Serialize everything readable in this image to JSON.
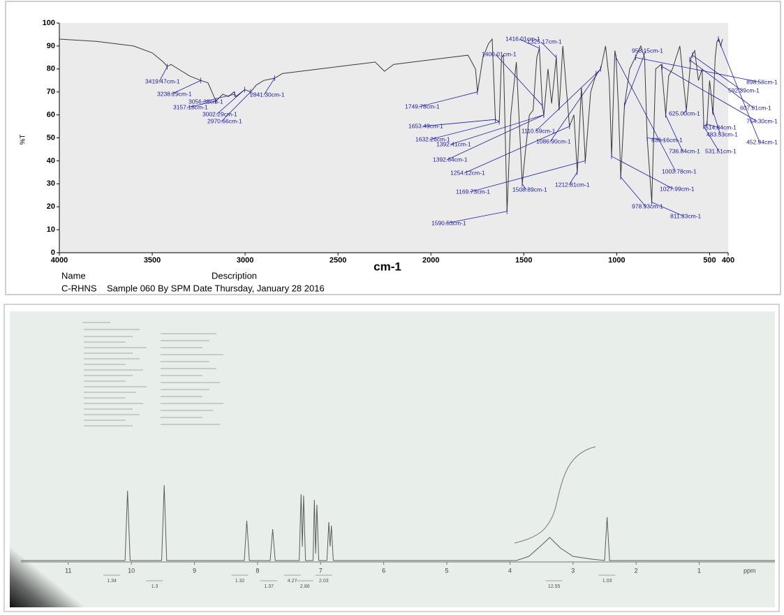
{
  "chart_data": [
    {
      "type": "line",
      "x_label": "cm-1",
      "y_label": "%T",
      "xlim": [
        4000,
        400
      ],
      "ylim": [
        0,
        100
      ],
      "xticks": [
        4000,
        3500,
        3000,
        2500,
        2000,
        1500,
        1000,
        500,
        400
      ],
      "yticks": [
        0,
        10,
        20,
        30,
        40,
        50,
        60,
        70,
        80,
        90,
        100
      ],
      "color": "#3a3a3a",
      "annotation_color": "#1c1ca8",
      "x": [
        4000,
        3800,
        3600,
        3500,
        3440,
        3419,
        3400,
        3300,
        3238,
        3200,
        3157,
        3120,
        3090,
        3060,
        3050,
        3002,
        2970,
        2940,
        2900,
        2841,
        2800,
        2600,
        2400,
        2300,
        2250,
        2200,
        2000,
        1800,
        1760,
        1749,
        1720,
        1690,
        1670,
        1653,
        1632,
        1620,
        1610,
        1590,
        1570,
        1540,
        1508,
        1490,
        1470,
        1450,
        1430,
        1416,
        1400,
        1392,
        1370,
        1350,
        1325,
        1310,
        1290,
        1254,
        1230,
        1212,
        1190,
        1169,
        1140,
        1110,
        1086,
        1060,
        1040,
        1027,
        1010,
        1003,
        990,
        978,
        958,
        930,
        900,
        870,
        850,
        836,
        811,
        790,
        760,
        736,
        720,
        700,
        680,
        660,
        625,
        600,
        580,
        560,
        540,
        531,
        514,
        500,
        493,
        482,
        470,
        460,
        450,
        440,
        430
      ],
      "values": [
        93,
        92,
        90,
        87,
        83,
        81,
        82,
        77,
        75,
        74,
        66,
        69,
        68,
        70,
        68,
        71,
        70,
        73,
        75,
        76,
        78,
        80,
        82,
        83,
        79,
        82,
        84,
        86,
        80,
        70,
        85,
        91,
        93,
        58,
        57,
        85,
        86,
        18,
        60,
        83,
        30,
        45,
        60,
        62,
        85,
        89,
        64,
        60,
        80,
        65,
        85,
        62,
        90,
        55,
        60,
        35,
        72,
        40,
        70,
        78,
        80,
        90,
        75,
        42,
        88,
        85,
        62,
        33,
        64,
        80,
        85,
        90,
        85,
        50,
        22,
        80,
        82,
        60,
        77,
        80,
        85,
        90,
        62,
        85,
        88,
        75,
        80,
        55,
        56,
        75,
        70,
        60,
        85,
        92,
        93,
        90,
        93
      ],
      "annotations": [
        {
          "x": 3419.47,
          "y": 81,
          "label": "3419.47cm-1"
        },
        {
          "x": 3238.29,
          "y": 75,
          "label": "3238.29cm-1"
        },
        {
          "x": 3056.38,
          "y": 69,
          "label": "3056.38cm-1"
        },
        {
          "x": 3157.18,
          "y": 66,
          "label": "3157.18cm-1"
        },
        {
          "x": 3002.29,
          "y": 71,
          "label": "3002.29cm-1"
        },
        {
          "x": 2970.66,
          "y": 70,
          "label": "2970.66cm-1"
        },
        {
          "x": 2841.3,
          "y": 76,
          "label": "2841.30cm-1"
        },
        {
          "x": 1749.78,
          "y": 70,
          "label": "1749.78cm-1"
        },
        {
          "x": 1653.49,
          "y": 58,
          "label": "1653.49cm-1"
        },
        {
          "x": 1632.26,
          "y": 57,
          "label": "1632.26cm-1"
        },
        {
          "x": 1392.41,
          "y": 60,
          "label": "1392.41cm-1"
        },
        {
          "x": 1392.64,
          "y": 60,
          "label": "1392.64cm-1"
        },
        {
          "x": 1254.12,
          "y": 55,
          "label": "1254.12cm-1"
        },
        {
          "x": 1169.73,
          "y": 40,
          "label": "1169.73cm-1"
        },
        {
          "x": 1590.53,
          "y": 18,
          "label": "1590.53cm-1"
        },
        {
          "x": 1508.89,
          "y": 30,
          "label": "1508.89cm-1"
        },
        {
          "x": 1212.81,
          "y": 35,
          "label": "1212.81cm-1"
        },
        {
          "x": 1110.59,
          "y": 78,
          "label": "1110.59cm-1"
        },
        {
          "x": 1086.9,
          "y": 80,
          "label": "1086.90cm-1"
        },
        {
          "x": 1400.01,
          "y": 64,
          "label": "1400.01cm-1"
        },
        {
          "x": 1416.01,
          "y": 89,
          "label": "1416.01cm-1"
        },
        {
          "x": 1325.17,
          "y": 85,
          "label": "1325.17cm-1"
        },
        {
          "x": 958.15,
          "y": 64,
          "label": "958.15cm-1"
        },
        {
          "x": 978.93,
          "y": 33,
          "label": "978.93cm-1"
        },
        {
          "x": 811.83,
          "y": 22,
          "label": "811.83cm-1"
        },
        {
          "x": 1027.99,
          "y": 42,
          "label": "1027.99cm-1"
        },
        {
          "x": 1003.78,
          "y": 85,
          "label": "1003.78cm-1"
        },
        {
          "x": 836.16,
          "y": 50,
          "label": "836.16cm-1"
        },
        {
          "x": 736.84,
          "y": 60,
          "label": "736.84cm-1"
        },
        {
          "x": 625.0,
          "y": 62,
          "label": "625.00cm-1"
        },
        {
          "x": 531.51,
          "y": 55,
          "label": "531.51cm-1"
        },
        {
          "x": 483.53,
          "y": 62,
          "label": "483.53cm-1"
        },
        {
          "x": 514.84,
          "y": 56,
          "label": "514.84cm-1"
        },
        {
          "x": 452.94,
          "y": 93,
          "label": "452.94cm-1"
        },
        {
          "x": 754.3,
          "y": 81,
          "label": "754.30cm-1"
        },
        {
          "x": 607.01,
          "y": 84,
          "label": "607.01cm-1"
        },
        {
          "x": 592.39,
          "y": 86,
          "label": "592.39cm-1"
        },
        {
          "x": 898.58,
          "y": 85,
          "label": "898.58cm-1"
        }
      ],
      "footer": {
        "name": "Name",
        "description": "Description",
        "entry": "C-RHNS    Sample 060 By SPM Date Thursday, January 28 2016"
      }
    },
    {
      "type": "line",
      "x_label": "ppm",
      "xlim": [
        11.75,
        -0.2
      ],
      "ylim": [
        0,
        120
      ],
      "xticks": [
        11,
        10,
        9,
        8,
        7,
        6,
        5,
        4,
        3,
        2,
        1
      ],
      "color": "#5a5e5c",
      "x": [
        11.75,
        10.1,
        10.06,
        10.02,
        9.52,
        9.48,
        9.44,
        8.21,
        8.17,
        8.13,
        7.8,
        7.76,
        7.72,
        7.34,
        7.31,
        7.29,
        7.27,
        7.24,
        7.12,
        7.1,
        7.08,
        7.06,
        7.03,
        6.9,
        6.87,
        6.85,
        6.83,
        6.8,
        3.9,
        3.7,
        3.5,
        3.37,
        3.2,
        3.0,
        2.7,
        2.5,
        2.46,
        2.42,
        -0.2
      ],
      "values": [
        0,
        0,
        100,
        0,
        0,
        108,
        0,
        0,
        57,
        0,
        0,
        45,
        0,
        0,
        95,
        20,
        93,
        0,
        0,
        87,
        10,
        80,
        0,
        0,
        55,
        20,
        50,
        0,
        0,
        6,
        22,
        33,
        18,
        6,
        2,
        0,
        62,
        0,
        0
      ],
      "integrals": {
        "x": [
          10.31,
          9.63,
          8.28,
          7.82,
          7.45,
          7.25,
          6.95,
          3.3,
          2.46
        ],
        "values": [
          1.34,
          1.3,
          1.32,
          1.37,
          4.27,
          2.86,
          2.03,
          12.55,
          1.03
        ]
      }
    }
  ]
}
